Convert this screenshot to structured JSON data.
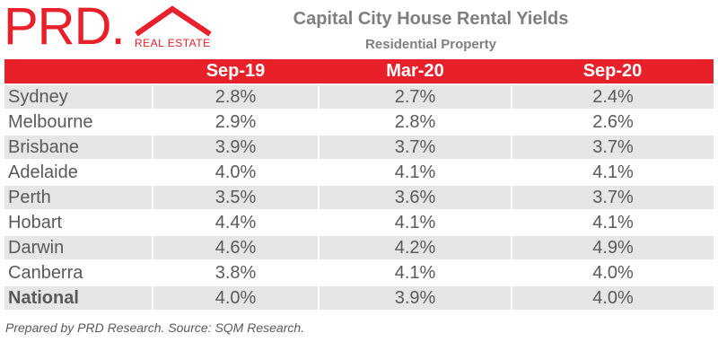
{
  "logo": {
    "brand": "PRD.",
    "tagline": "REAL ESTATE"
  },
  "header": {
    "title": "Capital City House Rental Yields",
    "subtitle": "Residential Property"
  },
  "table": {
    "columns": [
      "Sep-19",
      "Mar-20",
      "Sep-20"
    ],
    "rows": [
      [
        "Sydney",
        "2.8%",
        "2.7%",
        "2.4%"
      ],
      [
        "Melbourne",
        "2.9%",
        "2.8%",
        "2.6%"
      ],
      [
        "Brisbane",
        "3.9%",
        "3.7%",
        "3.7%"
      ],
      [
        "Adelaide",
        "4.0%",
        "4.1%",
        "4.1%"
      ],
      [
        "Perth",
        "3.5%",
        "3.6%",
        "3.7%"
      ],
      [
        "Hobart",
        "4.4%",
        "4.1%",
        "4.1%"
      ],
      [
        "Darwin",
        "4.6%",
        "4.2%",
        "4.9%"
      ],
      [
        "Canberra",
        "3.8%",
        "4.1%",
        "4.0%"
      ],
      [
        "National",
        "4.0%",
        "3.9%",
        "4.0%"
      ]
    ]
  },
  "footer": {
    "note": "Prepared by PRD Research. Source: SQM Research."
  }
}
